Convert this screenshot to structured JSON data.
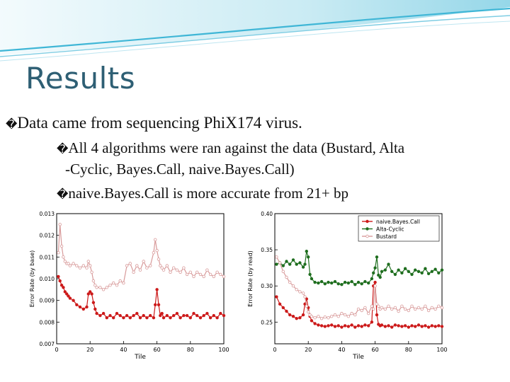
{
  "slide": {
    "title": "Results",
    "bullet_glyph": "�",
    "bullets": [
      "Data came from sequencing PhiX174 virus.",
      "All 4 algorithms were ran against the data (Bustard, Alta",
      "-Cyclic, Bayes.Call, naive.Bayes.Call)",
      "naive.Bayes.Call is more accurate from 21+ bp"
    ]
  },
  "colors": {
    "title": "#2e5f74",
    "wave": "#3fb6d6",
    "naive": "#cc1a1a",
    "alta": "#1f6e1f",
    "bustard": "#d89a9a"
  },
  "chart_data": [
    {
      "type": "line",
      "xlabel": "Tile",
      "ylabel": "Error Rate (by base)",
      "xlim": [
        0,
        100
      ],
      "ylim": [
        0.007,
        0.013
      ],
      "xticks": [
        "0",
        "20",
        "40",
        "60",
        "80",
        "100"
      ],
      "yticks": [
        "0.007",
        "0.008",
        "0.009",
        "0.010",
        "0.011",
        "0.012",
        "0.013"
      ],
      "series": [
        {
          "color": "#cc1a1a",
          "x": [
            1,
            2,
            3,
            4,
            5,
            6,
            7,
            8,
            10,
            12,
            14,
            16,
            18,
            19,
            20,
            21,
            22,
            23,
            24,
            26,
            28,
            30,
            32,
            34,
            36,
            38,
            40,
            42,
            44,
            46,
            48,
            50,
            52,
            54,
            56,
            58,
            59,
            60,
            61,
            62,
            63,
            64,
            66,
            68,
            70,
            72,
            74,
            76,
            78,
            80,
            82,
            84,
            86,
            88,
            90,
            92,
            94,
            96,
            98,
            100
          ],
          "y": [
            0.0101,
            0.0099,
            0.0097,
            0.0096,
            0.0094,
            0.0093,
            0.0092,
            0.0091,
            0.009,
            0.0088,
            0.0087,
            0.0086,
            0.0087,
            0.0093,
            0.0094,
            0.0093,
            0.0089,
            0.0086,
            0.0084,
            0.0083,
            0.0084,
            0.0082,
            0.0083,
            0.0082,
            0.0084,
            0.0083,
            0.0082,
            0.0083,
            0.0082,
            0.0083,
            0.0084,
            0.0082,
            0.0083,
            0.0082,
            0.0083,
            0.0082,
            0.0088,
            0.0095,
            0.0088,
            0.0083,
            0.0084,
            0.0082,
            0.0083,
            0.0082,
            0.0083,
            0.0084,
            0.0082,
            0.0083,
            0.0083,
            0.0082,
            0.0084,
            0.0083,
            0.0082,
            0.0083,
            0.0084,
            0.0082,
            0.0083,
            0.0082,
            0.0084,
            0.0083
          ]
        },
        {
          "color": "#d89a9a",
          "x": [
            1,
            2,
            3,
            4,
            5,
            6,
            7,
            8,
            10,
            12,
            14,
            16,
            18,
            19,
            20,
            21,
            22,
            23,
            24,
            26,
            28,
            30,
            32,
            34,
            36,
            38,
            40,
            42,
            44,
            46,
            48,
            50,
            52,
            54,
            56,
            58,
            59,
            60,
            61,
            62,
            63,
            64,
            66,
            68,
            70,
            72,
            74,
            76,
            78,
            80,
            82,
            84,
            86,
            88,
            90,
            92,
            94,
            96,
            98,
            100
          ],
          "y": [
            0.0112,
            0.0125,
            0.0115,
            0.011,
            0.0108,
            0.0107,
            0.0107,
            0.0106,
            0.0107,
            0.0106,
            0.0105,
            0.0106,
            0.0105,
            0.0108,
            0.0106,
            0.0103,
            0.0099,
            0.0097,
            0.0096,
            0.0096,
            0.0095,
            0.0096,
            0.0097,
            0.0098,
            0.0097,
            0.0099,
            0.0098,
            0.0106,
            0.0107,
            0.0103,
            0.0106,
            0.0104,
            0.0108,
            0.0105,
            0.0106,
            0.0112,
            0.0118,
            0.0113,
            0.0109,
            0.0106,
            0.0105,
            0.0104,
            0.0106,
            0.0103,
            0.0105,
            0.0104,
            0.0103,
            0.0105,
            0.0102,
            0.0103,
            0.0101,
            0.0103,
            0.0102,
            0.0101,
            0.0104,
            0.0102,
            0.0101,
            0.0103,
            0.0102,
            0.0101
          ]
        }
      ]
    },
    {
      "type": "line",
      "xlabel": "Tile",
      "ylabel": "Error Rate (by read)",
      "xlim": [
        0,
        100
      ],
      "ylim": [
        0.22,
        0.4
      ],
      "xticks": [
        "0",
        "20",
        "40",
        "60",
        "80",
        "100"
      ],
      "yticks": [
        "0.25",
        "0.30",
        "0.35",
        "0.40"
      ],
      "series": [
        {
          "name": "naive.Bayes.Call",
          "color": "#cc1a1a",
          "x": [
            1,
            3,
            5,
            7,
            9,
            11,
            13,
            15,
            17,
            18,
            19,
            20,
            21,
            22,
            24,
            26,
            28,
            30,
            32,
            34,
            36,
            38,
            40,
            42,
            44,
            46,
            48,
            50,
            52,
            54,
            56,
            58,
            59,
            60,
            61,
            62,
            63,
            64,
            66,
            68,
            70,
            72,
            74,
            76,
            78,
            80,
            82,
            84,
            86,
            88,
            90,
            92,
            94,
            96,
            98,
            100
          ],
          "y": [
            0.285,
            0.275,
            0.27,
            0.265,
            0.26,
            0.258,
            0.255,
            0.256,
            0.26,
            0.275,
            0.282,
            0.27,
            0.258,
            0.252,
            0.248,
            0.246,
            0.245,
            0.244,
            0.245,
            0.246,
            0.244,
            0.245,
            0.243,
            0.245,
            0.244,
            0.246,
            0.243,
            0.245,
            0.244,
            0.246,
            0.245,
            0.25,
            0.3,
            0.305,
            0.26,
            0.247,
            0.245,
            0.246,
            0.244,
            0.245,
            0.243,
            0.246,
            0.245,
            0.244,
            0.245,
            0.243,
            0.245,
            0.244,
            0.246,
            0.244,
            0.245,
            0.243,
            0.245,
            0.244,
            0.245,
            0.244
          ]
        },
        {
          "name": "Alta-Cyclic",
          "color": "#1f6e1f",
          "x": [
            1,
            3,
            5,
            7,
            9,
            11,
            13,
            15,
            17,
            18,
            19,
            20,
            21,
            22,
            24,
            26,
            28,
            30,
            32,
            34,
            36,
            38,
            40,
            42,
            44,
            46,
            48,
            50,
            52,
            54,
            56,
            58,
            59,
            60,
            61,
            62,
            63,
            64,
            66,
            68,
            70,
            72,
            74,
            76,
            78,
            80,
            82,
            84,
            86,
            88,
            90,
            92,
            94,
            96,
            98,
            100
          ],
          "y": [
            0.33,
            0.332,
            0.328,
            0.334,
            0.33,
            0.336,
            0.33,
            0.332,
            0.326,
            0.33,
            0.348,
            0.34,
            0.316,
            0.31,
            0.305,
            0.304,
            0.306,
            0.303,
            0.305,
            0.304,
            0.306,
            0.303,
            0.302,
            0.305,
            0.304,
            0.306,
            0.302,
            0.305,
            0.303,
            0.306,
            0.304,
            0.31,
            0.318,
            0.325,
            0.34,
            0.315,
            0.312,
            0.32,
            0.322,
            0.33,
            0.32,
            0.316,
            0.322,
            0.318,
            0.324,
            0.32,
            0.316,
            0.322,
            0.32,
            0.318,
            0.324,
            0.317,
            0.32,
            0.323,
            0.318,
            0.322
          ]
        },
        {
          "name": "Bustard",
          "color": "#d89a9a",
          "x": [
            1,
            3,
            5,
            7,
            9,
            11,
            13,
            15,
            17,
            18,
            19,
            20,
            21,
            22,
            24,
            26,
            28,
            30,
            32,
            34,
            36,
            38,
            40,
            42,
            44,
            46,
            48,
            50,
            52,
            54,
            56,
            58,
            59,
            60,
            61,
            62,
            63,
            64,
            66,
            68,
            70,
            72,
            74,
            76,
            78,
            80,
            82,
            84,
            86,
            88,
            90,
            92,
            94,
            96,
            98,
            100
          ],
          "y": [
            0.34,
            0.332,
            0.32,
            0.312,
            0.305,
            0.3,
            0.295,
            0.292,
            0.29,
            0.285,
            0.272,
            0.264,
            0.26,
            0.258,
            0.256,
            0.258,
            0.255,
            0.257,
            0.256,
            0.258,
            0.26,
            0.258,
            0.262,
            0.26,
            0.258,
            0.262,
            0.26,
            0.268,
            0.266,
            0.27,
            0.262,
            0.272,
            0.268,
            0.3,
            0.275,
            0.272,
            0.268,
            0.27,
            0.268,
            0.272,
            0.268,
            0.27,
            0.265,
            0.272,
            0.268,
            0.266,
            0.272,
            0.268,
            0.27,
            0.268,
            0.272,
            0.266,
            0.27,
            0.268,
            0.272,
            0.27
          ]
        }
      ],
      "legend": {
        "position": "top-right",
        "entries": [
          "naive.Bayes.Call",
          "Alta-Cyclic",
          "Bustard"
        ]
      }
    }
  ]
}
